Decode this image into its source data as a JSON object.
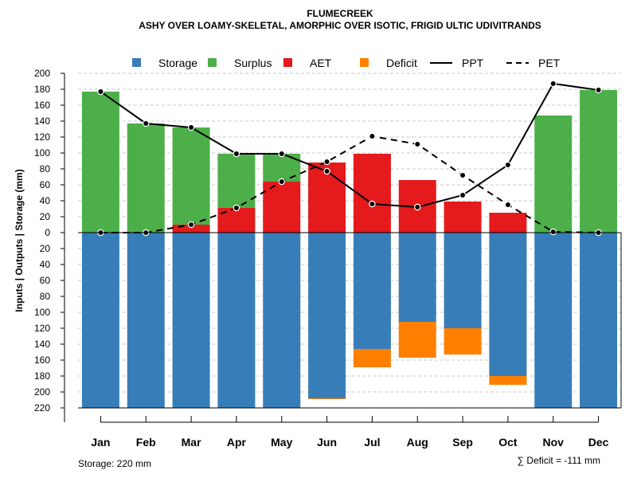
{
  "chart_data": {
    "type": "bar",
    "title": "FLUMECREEK",
    "subtitle": "ASHY OVER LOAMY-SKELETAL, AMORPHIC OVER ISOTIC, FRIGID ULTIC UDIVITRANDS",
    "ylabel": "Inputs | Outputs | Storage    (mm)",
    "categories": [
      "Jan",
      "Feb",
      "Mar",
      "Apr",
      "May",
      "Jun",
      "Jul",
      "Aug",
      "Sep",
      "Oct",
      "Nov",
      "Dec"
    ],
    "ylim": [
      -220,
      200
    ],
    "y_ticks": [
      200,
      180,
      160,
      140,
      120,
      100,
      80,
      60,
      40,
      20,
      0,
      -20,
      -40,
      -60,
      -80,
      -100,
      -120,
      -140,
      -160,
      -180,
      -200,
      -220
    ],
    "y_tick_labels": [
      "200",
      "180",
      "160",
      "140",
      "120",
      "100",
      "80",
      "60",
      "40",
      "20",
      "0",
      "20",
      "40",
      "60",
      "80",
      "100",
      "120",
      "140",
      "160",
      "180",
      "200",
      "220"
    ],
    "series": [
      {
        "name": "Storage",
        "color": "#377eb8",
        "values": [
          220,
          220,
          220,
          220,
          220,
          208,
          146,
          112,
          120,
          180,
          220,
          220
        ]
      },
      {
        "name": "Surplus",
        "color": "#4daf4a",
        "values": [
          177,
          137,
          122,
          68,
          35,
          0,
          0,
          0,
          0,
          0,
          147,
          179
        ]
      },
      {
        "name": "AET",
        "color": "#e41a1c",
        "values": [
          0,
          0,
          10,
          31,
          64,
          88,
          99,
          66,
          39,
          25,
          0,
          0
        ]
      },
      {
        "name": "Deficit",
        "color": "#ff7f00",
        "values": [
          0,
          0,
          0,
          0,
          0,
          1,
          23,
          45,
          33,
          11,
          0,
          0
        ]
      },
      {
        "name": "PPT",
        "style": "solid",
        "values": [
          177,
          137,
          132,
          99,
          99,
          77,
          36,
          32,
          47,
          85,
          187,
          179
        ]
      },
      {
        "name": "PET",
        "style": "dashed",
        "values": [
          0,
          0,
          10,
          31,
          64,
          89,
          121,
          111,
          72,
          35,
          1,
          0
        ]
      }
    ],
    "legend": [
      "Storage",
      "Surplus",
      "AET",
      "Deficit",
      "PPT",
      "PET"
    ],
    "legend_position": "top",
    "grid": true
  },
  "footer": {
    "storage_note": "Storage: 220 mm",
    "deficit_note": "∑ Deficit = -111 mm"
  }
}
